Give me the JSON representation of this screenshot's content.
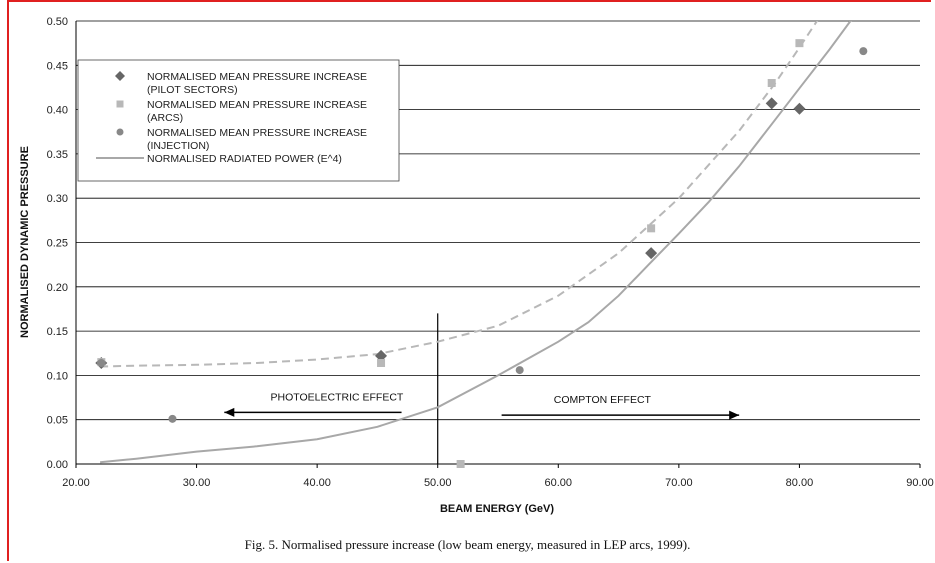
{
  "chart_data": {
    "type": "scatter",
    "xlabel": "BEAM ENERGY (GeV)",
    "ylabel": "NORMALISED DYNAMIC PRESSURE",
    "xlim": [
      20,
      90
    ],
    "ylim": [
      0,
      0.5
    ],
    "x_ticks": [
      "20.00",
      "30.00",
      "40.00",
      "50.00",
      "60.00",
      "70.00",
      "80.00",
      "90.00"
    ],
    "y_ticks": [
      "0.00",
      "0.05",
      "0.10",
      "0.15",
      "0.20",
      "0.25",
      "0.30",
      "0.35",
      "0.40",
      "0.45",
      "0.50"
    ],
    "grid": "horizontal",
    "legend_position": "top-left",
    "series": [
      {
        "name": "NORMALISED MEAN PRESSURE INCREASE\n(PILOT SECTORS)",
        "marker": "diamond",
        "color": "#666666",
        "points": [
          [
            22.1,
            0.114
          ],
          [
            45.3,
            0.122
          ],
          [
            67.7,
            0.238
          ],
          [
            77.7,
            0.407
          ],
          [
            80.0,
            0.401
          ]
        ]
      },
      {
        "name": "NORMALISED MEAN PRESSURE INCREASE\n(ARCS)",
        "marker": "square",
        "color": "#b8b8b8",
        "points": [
          [
            22.1,
            0.115
          ],
          [
            45.3,
            0.114
          ],
          [
            51.9,
            0.0
          ],
          [
            67.7,
            0.266
          ],
          [
            77.7,
            0.43
          ],
          [
            80.0,
            0.475
          ]
        ]
      },
      {
        "name": "NORMALISED MEAN PRESSURE INCREASE\n(INJECTION)",
        "marker": "circle",
        "color": "#888888",
        "points": [
          [
            22.1,
            0.114
          ],
          [
            28.0,
            0.051
          ],
          [
            56.8,
            0.106
          ],
          [
            85.3,
            0.466
          ]
        ]
      },
      {
        "name": "NORMALISED RADIATED POWER (E^4)",
        "marker": "line",
        "color": "#a8a8a8",
        "points": [
          [
            22.0,
            0.002
          ],
          [
            25.0,
            0.006
          ],
          [
            30.0,
            0.014
          ],
          [
            35.0,
            0.02
          ],
          [
            40.0,
            0.028
          ],
          [
            45.0,
            0.042
          ],
          [
            50.0,
            0.064
          ],
          [
            55.0,
            0.1
          ],
          [
            60.0,
            0.138
          ],
          [
            62.5,
            0.16
          ],
          [
            65.0,
            0.19
          ],
          [
            67.5,
            0.225
          ],
          [
            70.0,
            0.26
          ],
          [
            72.5,
            0.296
          ],
          [
            75.0,
            0.336
          ],
          [
            77.5,
            0.38
          ],
          [
            80.0,
            0.424
          ],
          [
            82.5,
            0.468
          ],
          [
            84.5,
            0.505
          ]
        ]
      },
      {
        "marker": "dashed-line",
        "color": "#b8b8b8",
        "points": [
          [
            22.0,
            0.11
          ],
          [
            25.0,
            0.111
          ],
          [
            30.0,
            0.112
          ],
          [
            35.0,
            0.114
          ],
          [
            40.0,
            0.118
          ],
          [
            45.0,
            0.124
          ],
          [
            50.0,
            0.138
          ],
          [
            55.0,
            0.156
          ],
          [
            60.0,
            0.19
          ],
          [
            65.0,
            0.238
          ],
          [
            70.0,
            0.3
          ],
          [
            75.0,
            0.376
          ],
          [
            78.0,
            0.43
          ],
          [
            80.0,
            0.47
          ],
          [
            81.7,
            0.505
          ]
        ]
      }
    ],
    "annotations": [
      {
        "text": "PHOTOELECTRIC EFFECT",
        "arrow": "left",
        "x_from": 47.0,
        "x_to": 32.3,
        "y": 0.065
      },
      {
        "text": "COMPTON EFFECT",
        "arrow": "right",
        "x_from": 55.3,
        "x_to": 75.0,
        "y": 0.062
      }
    ],
    "reference_line": {
      "x": 50.0,
      "y_from": 0.0,
      "y_to": 0.17
    }
  },
  "caption": "Fig. 5.  Normalised pressure increase (low beam energy, measured in LEP arcs, 1999)."
}
